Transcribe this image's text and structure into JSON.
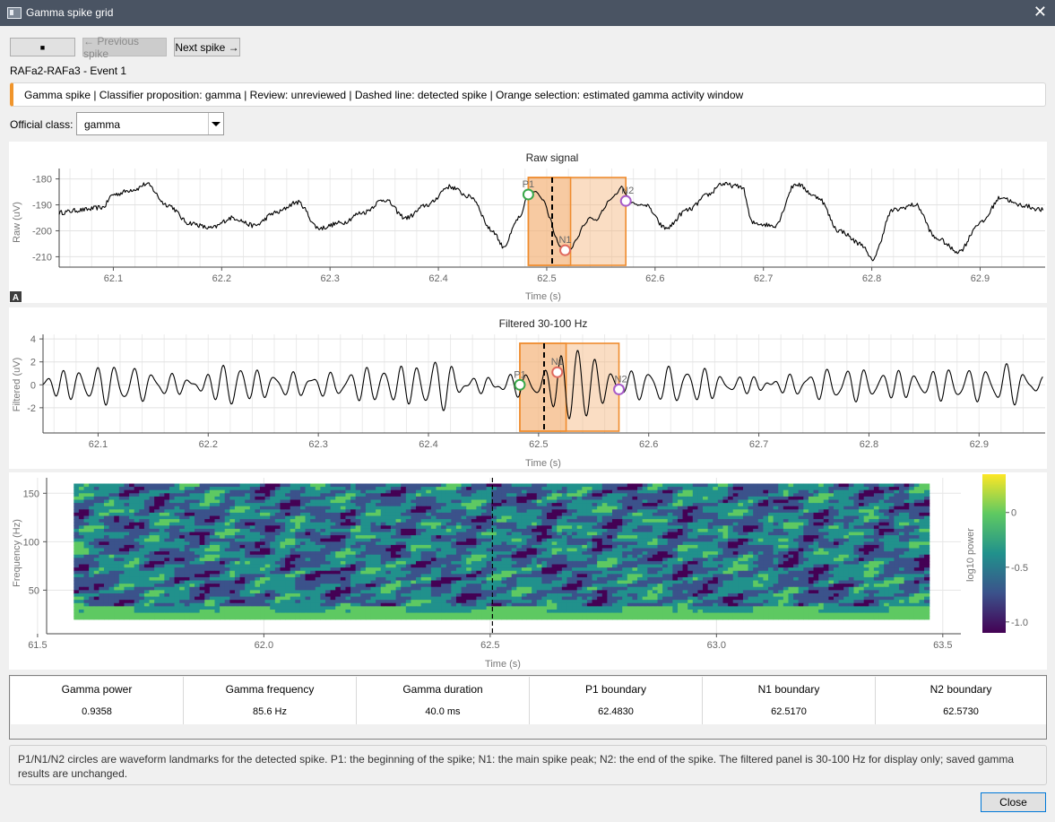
{
  "window": {
    "title": "Gamma spike grid",
    "close_glyph": "✕",
    "app_icon": "window-icon"
  },
  "toolbar": {
    "stop_glyph": "■",
    "previous_label": "← Previous spike",
    "next_label": "Next spike →"
  },
  "event_title": "RAFa2-RAFa3 - Event 1",
  "banner": {
    "text": "Gamma spike | Classifier proposition: gamma | Review: unreviewed | Dashed line: detected spike | Orange selection: estimated gamma activity window",
    "accent_color": "#f0952c"
  },
  "official_class": {
    "label": "Official class:",
    "value": "gamma"
  },
  "colors": {
    "selection_fill": "#f5b37a",
    "selection_edge": "#ef8c2e",
    "p1": "#3aa84a",
    "n1": "#e06a5e",
    "n2": "#a75bc9",
    "trace": "#000000"
  },
  "auto_range_glyph": "A",
  "chart_data": [
    {
      "type": "line",
      "title": "Raw signal",
      "xlabel": "Time (s)",
      "ylabel": "Raw (uV)",
      "xlim": [
        62.05,
        62.96
      ],
      "ylim": [
        -214,
        -176
      ],
      "x_ticks": [
        "62.1",
        "62.2",
        "62.3",
        "62.4",
        "62.5",
        "62.6",
        "62.7",
        "62.8",
        "62.9"
      ],
      "y_ticks": [
        "-180",
        "-190",
        "-200",
        "-210"
      ],
      "anchors": [
        [
          62.05,
          -193
        ],
        [
          62.07,
          -192
        ],
        [
          62.09,
          -191
        ],
        [
          62.1,
          -186
        ],
        [
          62.12,
          -184
        ],
        [
          62.13,
          -182
        ],
        [
          62.15,
          -190
        ],
        [
          62.17,
          -197
        ],
        [
          62.19,
          -199
        ],
        [
          62.21,
          -195
        ],
        [
          62.23,
          -198
        ],
        [
          62.25,
          -193
        ],
        [
          62.27,
          -189
        ],
        [
          62.29,
          -199
        ],
        [
          62.31,
          -197
        ],
        [
          62.33,
          -193
        ],
        [
          62.35,
          -188
        ],
        [
          62.37,
          -195
        ],
        [
          62.39,
          -190
        ],
        [
          62.41,
          -183
        ],
        [
          62.43,
          -187
        ],
        [
          62.45,
          -200
        ],
        [
          62.46,
          -206
        ],
        [
          62.48,
          -209
        ],
        [
          62.5,
          -203
        ],
        [
          62.53,
          -198
        ],
        [
          62.55,
          -190
        ],
        [
          62.575,
          -183
        ],
        [
          62.58,
          -186
        ],
        [
          62.59,
          -188
        ],
        [
          62.61,
          -199
        ],
        [
          62.63,
          -192
        ],
        [
          62.65,
          -186
        ],
        [
          62.66,
          -182
        ],
        [
          62.68,
          -183
        ],
        [
          62.69,
          -197
        ],
        [
          62.71,
          -198
        ],
        [
          62.73,
          -182
        ],
        [
          62.75,
          -187
        ],
        [
          62.77,
          -200
        ],
        [
          62.79,
          -205
        ],
        [
          62.8,
          -211
        ],
        [
          62.82,
          -192
        ],
        [
          62.84,
          -190
        ],
        [
          62.86,
          -203
        ],
        [
          62.88,
          -208
        ],
        [
          62.9,
          -197
        ],
        [
          62.92,
          -187
        ],
        [
          62.935,
          -190
        ],
        [
          62.96,
          -192
        ]
      ],
      "event": [
        [
          62.475,
          -195
        ],
        [
          62.483,
          -186
        ],
        [
          62.49,
          -185
        ],
        [
          62.497,
          -188
        ],
        [
          62.503,
          -195
        ],
        [
          62.508,
          -202
        ],
        [
          62.512,
          -206
        ],
        [
          62.517,
          -208
        ],
        [
          62.522,
          -207
        ],
        [
          62.528,
          -203
        ],
        [
          62.534,
          -198
        ],
        [
          62.54,
          -195
        ],
        [
          62.546,
          -196
        ],
        [
          62.552,
          -192
        ],
        [
          62.558,
          -188
        ],
        [
          62.564,
          -186
        ],
        [
          62.569,
          -183
        ],
        [
          62.573,
          -186
        ],
        [
          62.578,
          -189
        ],
        [
          62.583,
          -190
        ],
        [
          62.59,
          -190
        ]
      ],
      "noise_amplitude": 0.9,
      "detected_spike_x": 62.505,
      "selection_windows": [
        [
          62.483,
          62.573
        ],
        [
          62.483,
          62.522
        ]
      ],
      "markers": [
        {
          "label": "P1",
          "x": 62.483,
          "y": -186
        },
        {
          "label": "N1",
          "x": 62.517,
          "y": -207.5
        },
        {
          "label": "N2",
          "x": 62.573,
          "y": -188.5
        }
      ]
    },
    {
      "type": "line",
      "title": "Filtered 30-100 Hz",
      "xlabel": "Time (s)",
      "ylabel": "Filtered (uV)",
      "xlim": [
        62.05,
        62.96
      ],
      "ylim": [
        -4.2,
        4.4
      ],
      "x_ticks": [
        "62.1",
        "62.2",
        "62.3",
        "62.4",
        "62.5",
        "62.6",
        "62.7",
        "62.8",
        "62.9"
      ],
      "y_ticks": [
        "4",
        "2",
        "0",
        "-2"
      ],
      "base_frequency_hz": 62,
      "amplitude": 1.2,
      "bursts": [
        {
          "center": 62.22,
          "width": 0.012,
          "amp": 1.2
        },
        {
          "center": 62.41,
          "width": 0.014,
          "amp": 1.3
        },
        {
          "center": 62.535,
          "width": 0.018,
          "amp": 2.4
        },
        {
          "center": 62.93,
          "width": 0.015,
          "amp": 0.9
        }
      ],
      "detected_spike_x": 62.505,
      "selection_windows": [
        [
          62.483,
          62.573
        ],
        [
          62.483,
          62.525
        ]
      ],
      "markers": [
        {
          "label": "P1",
          "x": 62.483,
          "y": 0
        },
        {
          "label": "N1",
          "x": 62.517,
          "y": 1.1
        },
        {
          "label": "N2",
          "x": 62.573,
          "y": -0.4
        }
      ]
    },
    {
      "type": "heatmap",
      "title": "",
      "xlabel": "Time (s)",
      "ylabel": "Frequency (Hz)",
      "colorbar_label": "log10 power",
      "xlim": [
        61.52,
        63.54
      ],
      "ylim": [
        5,
        166
      ],
      "data_extent_x": [
        61.58,
        63.47
      ],
      "data_extent_y": [
        20,
        160
      ],
      "x_ticks": [
        "61.5",
        "62.0",
        "62.5",
        "63.0",
        "63.5"
      ],
      "y_ticks": [
        "150",
        "100",
        "50"
      ],
      "colorbar_ticks": [
        "0",
        "-0.5",
        "-1.0"
      ],
      "colorbar_range": [
        -1.1,
        0.35
      ],
      "detected_spike_x": 62.505,
      "colormap": [
        "#440154",
        "#3b528b",
        "#21918c",
        "#5ec962",
        "#fde725"
      ]
    }
  ],
  "metrics": [
    {
      "header": "Gamma power",
      "value": "0.9358"
    },
    {
      "header": "Gamma frequency",
      "value": "85.6 Hz"
    },
    {
      "header": "Gamma duration",
      "value": "40.0 ms"
    },
    {
      "header": "P1 boundary",
      "value": "62.4830"
    },
    {
      "header": "N1 boundary",
      "value": "62.5170"
    },
    {
      "header": "N2 boundary",
      "value": "62.5730"
    }
  ],
  "note": "P1/N1/N2 circles are waveform landmarks for the detected spike.  P1: the beginning of the spike; N1: the main spike peak; N2: the end of the spike.  The filtered panel is 30-100 Hz for display only; saved gamma results are unchanged.",
  "close_label": "Close"
}
